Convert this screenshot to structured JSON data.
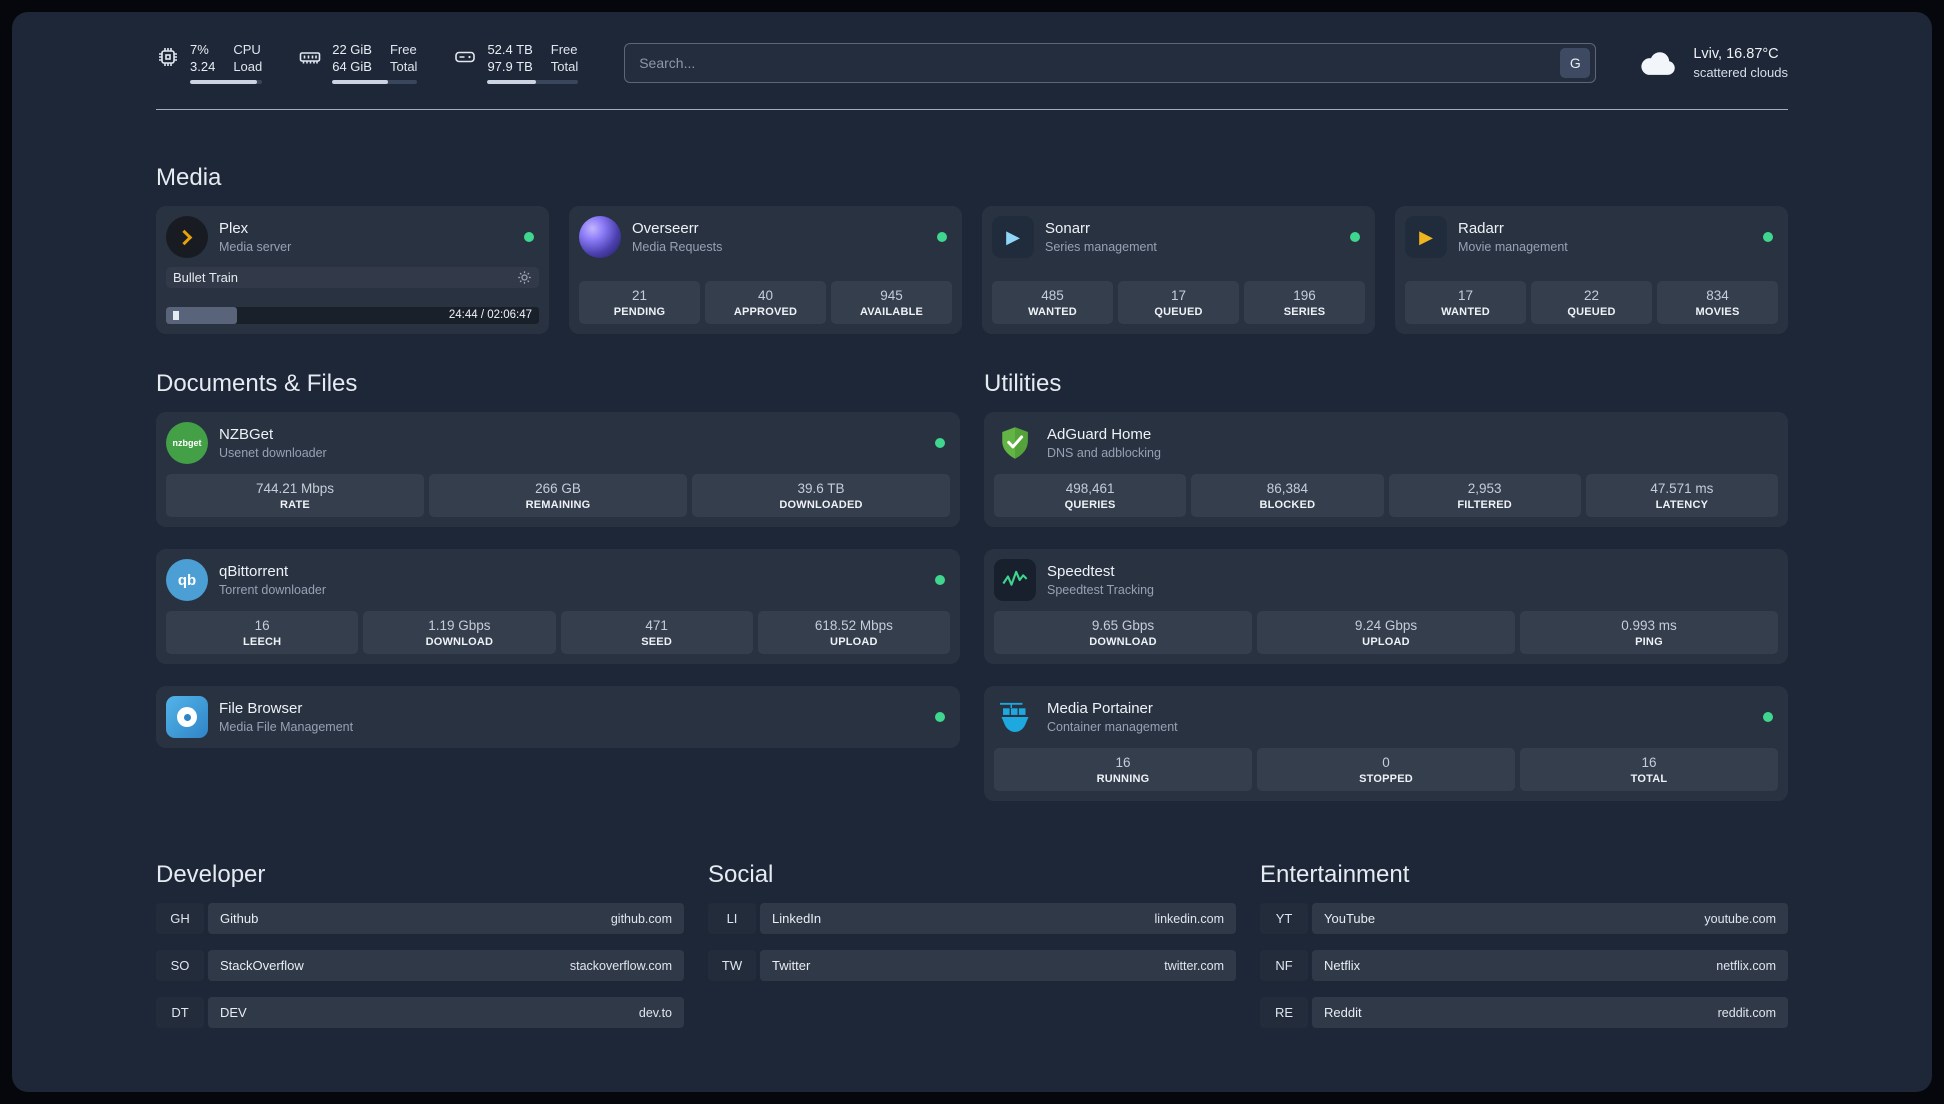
{
  "topbar": {
    "cpu": {
      "value1": "7%",
      "value2": "3.24",
      "label1": "CPU",
      "label2": "Load",
      "bar_pct": 93
    },
    "memory": {
      "value1": "22 GiB",
      "value2": "64 GiB",
      "label1": "Free",
      "label2": "Total",
      "bar_pct": 66
    },
    "disk": {
      "value1": "52.4 TB",
      "value2": "97.9 TB",
      "label1": "Free",
      "label2": "Total",
      "bar_pct": 54
    },
    "search": {
      "placeholder": "Search...",
      "provider_label": "G"
    },
    "weather": {
      "location": "Lviv, 16.87°C",
      "condition": "scattered clouds"
    }
  },
  "media": {
    "heading": "Media",
    "plex": {
      "name": "Plex",
      "subtitle": "Media server",
      "now_playing": "Bullet Train",
      "time": "24:44 / 02:06:47",
      "progress_pct": 19
    },
    "overseerr": {
      "name": "Overseerr",
      "subtitle": "Media Requests",
      "stats": [
        {
          "value": "21",
          "label": "PENDING"
        },
        {
          "value": "40",
          "label": "APPROVED"
        },
        {
          "value": "945",
          "label": "AVAILABLE"
        }
      ]
    },
    "sonarr": {
      "name": "Sonarr",
      "subtitle": "Series management",
      "stats": [
        {
          "value": "485",
          "label": "WANTED"
        },
        {
          "value": "17",
          "label": "QUEUED"
        },
        {
          "value": "196",
          "label": "SERIES"
        }
      ]
    },
    "radarr": {
      "name": "Radarr",
      "subtitle": "Movie management",
      "stats": [
        {
          "value": "17",
          "label": "WANTED"
        },
        {
          "value": "22",
          "label": "QUEUED"
        },
        {
          "value": "834",
          "label": "MOVIES"
        }
      ]
    }
  },
  "documents": {
    "heading": "Documents & Files",
    "nzbget": {
      "name": "NZBGet",
      "subtitle": "Usenet downloader",
      "icon_text": "nzbget",
      "stats": [
        {
          "value": "744.21 Mbps",
          "label": "RATE"
        },
        {
          "value": "266 GB",
          "label": "REMAINING"
        },
        {
          "value": "39.6 TB",
          "label": "DOWNLOADED"
        }
      ]
    },
    "qbittorrent": {
      "name": "qBittorrent",
      "subtitle": "Torrent downloader",
      "icon_text": "qb",
      "stats": [
        {
          "value": "16",
          "label": "LEECH"
        },
        {
          "value": "1.19 Gbps",
          "label": "DOWNLOAD"
        },
        {
          "value": "471",
          "label": "SEED"
        },
        {
          "value": "618.52 Mbps",
          "label": "UPLOAD"
        }
      ]
    },
    "filebrowser": {
      "name": "File Browser",
      "subtitle": "Media File Management"
    }
  },
  "utilities": {
    "heading": "Utilities",
    "adguard": {
      "name": "AdGuard Home",
      "subtitle": "DNS and adblocking",
      "stats": [
        {
          "value": "498,461",
          "label": "QUERIES"
        },
        {
          "value": "86,384",
          "label": "BLOCKED"
        },
        {
          "value": "2,953",
          "label": "FILTERED"
        },
        {
          "value": "47.571 ms",
          "label": "LATENCY"
        }
      ]
    },
    "speedtest": {
      "name": "Speedtest",
      "subtitle": "Speedtest Tracking",
      "stats": [
        {
          "value": "9.65 Gbps",
          "label": "DOWNLOAD"
        },
        {
          "value": "9.24 Gbps",
          "label": "UPLOAD"
        },
        {
          "value": "0.993 ms",
          "label": "PING"
        }
      ]
    },
    "portainer": {
      "name": "Media Portainer",
      "subtitle": "Container management",
      "stats": [
        {
          "value": "16",
          "label": "RUNNING"
        },
        {
          "value": "0",
          "label": "STOPPED"
        },
        {
          "value": "16",
          "label": "TOTAL"
        }
      ]
    }
  },
  "bookmarks": {
    "developer": {
      "heading": "Developer",
      "items": [
        {
          "abbr": "GH",
          "name": "Github",
          "url": "github.com"
        },
        {
          "abbr": "SO",
          "name": "StackOverflow",
          "url": "stackoverflow.com"
        },
        {
          "abbr": "DT",
          "name": "DEV",
          "url": "dev.to"
        }
      ]
    },
    "social": {
      "heading": "Social",
      "items": [
        {
          "abbr": "LI",
          "name": "LinkedIn",
          "url": "linkedin.com"
        },
        {
          "abbr": "TW",
          "name": "Twitter",
          "url": "twitter.com"
        }
      ]
    },
    "entertainment": {
      "heading": "Entertainment",
      "items": [
        {
          "abbr": "YT",
          "name": "YouTube",
          "url": "youtube.com"
        },
        {
          "abbr": "NF",
          "name": "Netflix",
          "url": "netflix.com"
        },
        {
          "abbr": "RE",
          "name": "Reddit",
          "url": "reddit.com"
        }
      ]
    }
  }
}
